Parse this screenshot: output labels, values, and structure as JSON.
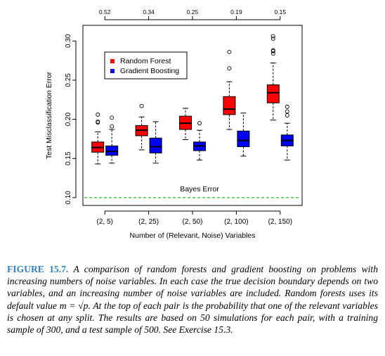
{
  "chart_data": {
    "type": "boxplot",
    "ylabel": "Test Misclassification Error",
    "xlabel": "Number of (Relevant, Noise) Variables",
    "categories": [
      "(2, 5)",
      "(2, 25)",
      "(2, 50)",
      "(2, 100)",
      "(2, 150)"
    ],
    "top_labels": [
      "0.52",
      "0.34",
      "0.25",
      "0.19",
      "0.15"
    ],
    "ylim": [
      0.09,
      0.32
    ],
    "yticks": [
      "0.10",
      "0.15",
      "0.20",
      "0.25",
      "0.30"
    ],
    "legend": {
      "position": "top-left"
    },
    "annotation": "Bayes Error",
    "bayes_error": 0.1,
    "series": [
      {
        "name": "Random Forest",
        "color": "#ff0000",
        "boxes": [
          {
            "whislo": 0.143,
            "q1": 0.158,
            "med": 0.164,
            "q3": 0.171,
            "whishi": 0.184,
            "fliers": [
              0.196,
              0.197,
              0.206
            ]
          },
          {
            "whislo": 0.161,
            "q1": 0.179,
            "med": 0.186,
            "q3": 0.192,
            "whishi": 0.203,
            "fliers": [
              0.217
            ]
          },
          {
            "whislo": 0.174,
            "q1": 0.187,
            "med": 0.195,
            "q3": 0.204,
            "whishi": 0.214,
            "fliers": []
          },
          {
            "whislo": 0.187,
            "q1": 0.206,
            "med": 0.213,
            "q3": 0.229,
            "whishi": 0.248,
            "fliers": [
              0.265,
              0.286
            ]
          },
          {
            "whislo": 0.199,
            "q1": 0.221,
            "med": 0.234,
            "q3": 0.244,
            "whishi": 0.272,
            "fliers": [
              0.284,
              0.287,
              0.288,
              0.303,
              0.306
            ]
          }
        ]
      },
      {
        "name": "Gradient Boosting",
        "color": "#0000ff",
        "boxes": [
          {
            "whislo": 0.144,
            "q1": 0.154,
            "med": 0.159,
            "q3": 0.166,
            "whishi": 0.187,
            "fliers": [
              0.191,
              0.202
            ]
          },
          {
            "whislo": 0.144,
            "q1": 0.157,
            "med": 0.165,
            "q3": 0.176,
            "whishi": 0.197,
            "fliers": []
          },
          {
            "whislo": 0.148,
            "q1": 0.16,
            "med": 0.166,
            "q3": 0.171,
            "whishi": 0.186,
            "fliers": [
              0.195
            ]
          },
          {
            "whislo": 0.153,
            "q1": 0.165,
            "med": 0.173,
            "q3": 0.185,
            "whishi": 0.208,
            "fliers": []
          },
          {
            "whislo": 0.148,
            "q1": 0.166,
            "med": 0.173,
            "q3": 0.18,
            "whishi": 0.195,
            "fliers": [
              0.205,
              0.21,
              0.216
            ]
          }
        ]
      }
    ]
  },
  "caption": {
    "label": "FIGURE 15.7.",
    "text": "A comparison of random forests and gradient boosting on problems with increasing numbers of noise variables. In each case the true decision boundary depends on two variables, and an increasing number of noise variables are included. Random forests uses its default value m = √p. At the top of each pair is the probability that one of the relevant variables is chosen at any split. The results are based on 50 simulations for each pair, with a training sample of 300, and a test sample of 500. See Exercise 15.3."
  }
}
